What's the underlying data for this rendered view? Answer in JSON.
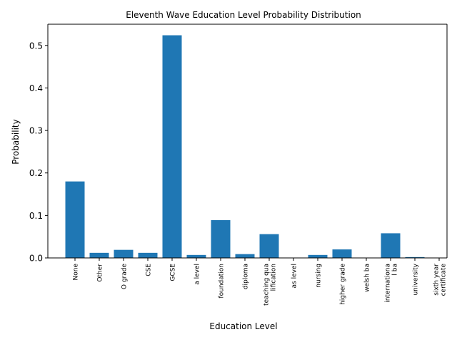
{
  "chart_data": {
    "type": "bar",
    "title": "Eleventh Wave Education Level Probability Distribution",
    "xlabel": "Education Level",
    "ylabel": "Probability",
    "ylim": [
      0,
      0.55
    ],
    "yticks": [
      0.0,
      0.1,
      0.2,
      0.3,
      0.4,
      0.5
    ],
    "ytick_labels": [
      "0.0",
      "0.1",
      "0.2",
      "0.3",
      "0.4",
      "0.5"
    ],
    "grid": false,
    "bar_color": "#1f77b4",
    "categories": [
      [
        "None"
      ],
      [
        "Other"
      ],
      [
        "O grade"
      ],
      [
        "CSE"
      ],
      [
        "GCSE"
      ],
      [
        "a level"
      ],
      [
        "foundation"
      ],
      [
        "diploma"
      ],
      [
        "teaching qua",
        "lification"
      ],
      [
        "as level"
      ],
      [
        "nursing"
      ],
      [
        "higher grade"
      ],
      [
        "welsh ba"
      ],
      [
        "internationa",
        "l ba"
      ],
      [
        "university"
      ],
      [
        "sixth year",
        "certificate"
      ]
    ],
    "values": [
      0.18,
      0.012,
      0.019,
      0.012,
      0.524,
      0.007,
      0.089,
      0.009,
      0.056,
      0.0,
      0.007,
      0.02,
      0.0,
      0.058,
      0.002,
      0.0
    ]
  }
}
